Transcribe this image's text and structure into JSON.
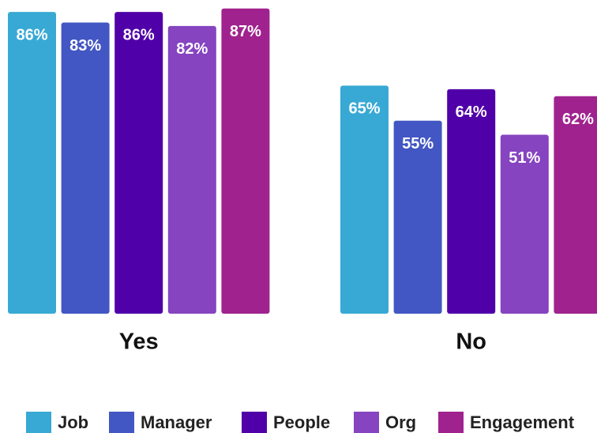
{
  "chart_data": {
    "type": "bar",
    "categories": [
      "Yes",
      "No"
    ],
    "series": [
      {
        "name": "Job",
        "color": "#38a9d4",
        "values": [
          86,
          65
        ],
        "value_labels": [
          "86%",
          "65%"
        ]
      },
      {
        "name": "Manager",
        "color": "#4257c3",
        "values": [
          83,
          55
        ],
        "value_labels": [
          "83%",
          "55%"
        ]
      },
      {
        "name": "People",
        "color": "#5000a8",
        "values": [
          86,
          64
        ],
        "value_labels": [
          "86%",
          "64%"
        ]
      },
      {
        "name": "Org",
        "color": "#8644c0",
        "values": [
          82,
          51
        ],
        "value_labels": [
          "82%",
          "51%"
        ]
      },
      {
        "name": "Engagement",
        "color": "#a0228e",
        "values": [
          87,
          62
        ],
        "value_labels": [
          "87%",
          "62%"
        ]
      }
    ],
    "ylim": [
      0,
      100
    ]
  }
}
